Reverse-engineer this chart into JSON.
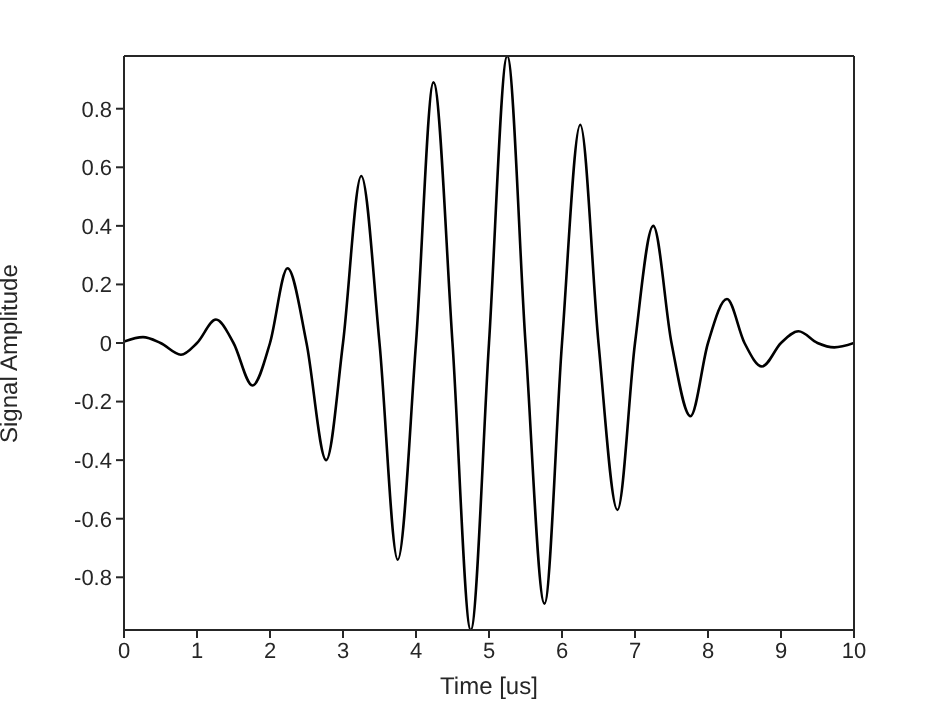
{
  "chart_data": {
    "type": "line",
    "xlabel": "Time [us]",
    "ylabel": "Signal Amplitude",
    "x": [
      0,
      0.26,
      0.5,
      0.78,
      1.0,
      1.26,
      1.5,
      1.76,
      2.0,
      2.24,
      2.5,
      2.77,
      3.0,
      3.25,
      3.5,
      3.75,
      4.0,
      4.24,
      4.5,
      4.75,
      5.0,
      5.25,
      5.5,
      5.76,
      6.0,
      6.25,
      6.5,
      6.76,
      7.0,
      7.25,
      7.5,
      7.76,
      8.0,
      8.26,
      8.5,
      8.74,
      9.0,
      9.24,
      9.5,
      9.73,
      10
    ],
    "series": [
      {
        "color": "#000000",
        "values": [
          0.005,
          0.02,
          0,
          -0.04,
          0,
          0.08,
          0,
          -0.145,
          0,
          0.255,
          0,
          -0.4,
          0,
          0.57,
          0,
          -0.74,
          0,
          0.89,
          0,
          -0.98,
          0,
          0.98,
          0,
          -0.89,
          0,
          0.745,
          0,
          -0.57,
          0,
          0.4,
          0,
          -0.25,
          0,
          0.15,
          0,
          -0.08,
          0,
          0.04,
          0,
          -0.015,
          0
        ]
      }
    ],
    "xlim": [
      0,
      10
    ],
    "xticks": [
      0,
      1,
      2,
      3,
      4,
      5,
      6,
      7,
      8,
      9,
      10
    ],
    "ylim": [
      -0.98,
      0.98
    ],
    "yticks": [
      -0.8,
      -0.6,
      -0.4,
      -0.2,
      0,
      0.2,
      0.4,
      0.6,
      0.8
    ],
    "grid": false,
    "legend": false,
    "marker": "none",
    "line_style": "solid"
  }
}
